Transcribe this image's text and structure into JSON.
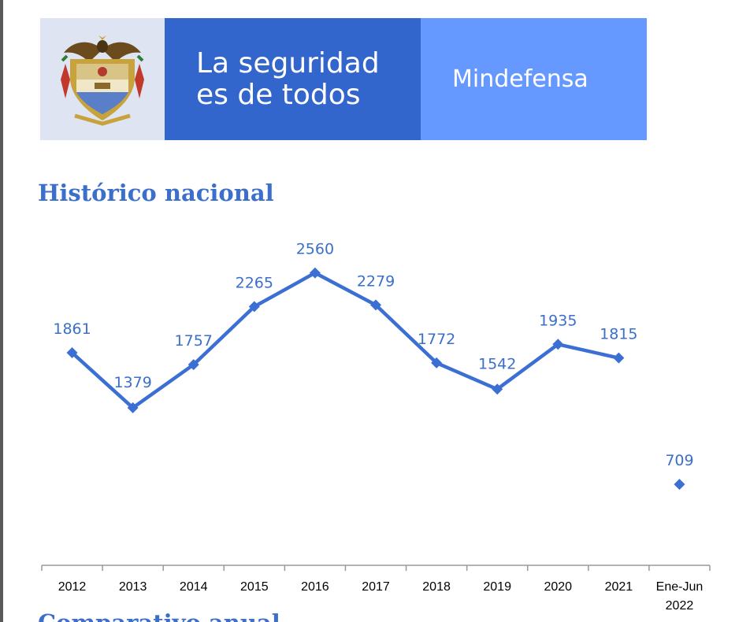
{
  "banner": {
    "slogan_line1": "La seguridad",
    "slogan_line2": "es de todos",
    "brand": "Mindefensa",
    "logo_icon": "colombia-coat-of-arms-icon",
    "colors": {
      "logo_bg": "#dfe4f3",
      "slogan_bg": "#3366cc",
      "brand_bg": "#6699ff"
    }
  },
  "section_title": "Histórico nacional",
  "next_section_title": "Comparativo anual",
  "chart_data": {
    "type": "line",
    "categories": [
      "2012",
      "2013",
      "2014",
      "2015",
      "2016",
      "2017",
      "2018",
      "2019",
      "2020",
      "2021",
      "Ene-Jun 2022"
    ],
    "series": [
      {
        "values": [
          1861,
          1379,
          1757,
          2265,
          2560,
          2279,
          1772,
          1542,
          1935,
          1815,
          709
        ],
        "color": "#3b6fd4",
        "connected_through_index": 9
      }
    ],
    "data_labels": [
      "1861",
      "1379",
      "1757",
      "2265",
      "2560",
      "2279",
      "1772",
      "1542",
      "1935",
      "1815",
      "709"
    ],
    "marker": "diamond",
    "ylim": [
      0,
      2950
    ],
    "y_axis_visible": false,
    "grid": false
  }
}
